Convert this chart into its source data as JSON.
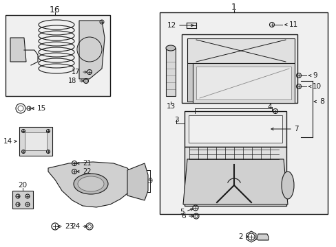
{
  "bg_color": "#ffffff",
  "line_color": "#1a1a1a",
  "gray_fill": "#d8d8d8",
  "light_fill": "#eeeeee",
  "fig_width": 4.89,
  "fig_height": 3.6,
  "dpi": 100
}
